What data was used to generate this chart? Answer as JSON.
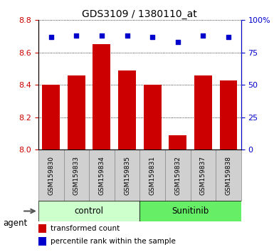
{
  "title": "GDS3109 / 1380110_at",
  "samples": [
    "GSM159830",
    "GSM159833",
    "GSM159834",
    "GSM159835",
    "GSM159831",
    "GSM159832",
    "GSM159837",
    "GSM159838"
  ],
  "bar_values": [
    8.4,
    8.46,
    8.65,
    8.49,
    8.4,
    8.09,
    8.46,
    8.43
  ],
  "percentile_values": [
    87,
    88,
    88,
    88,
    87,
    83,
    88,
    87
  ],
  "bar_color": "#cc0000",
  "dot_color": "#0000cc",
  "ylim_left": [
    8.0,
    8.8
  ],
  "ylim_right": [
    0,
    100
  ],
  "yticks_left": [
    8.0,
    8.2,
    8.4,
    8.6,
    8.8
  ],
  "yticks_right": [
    0,
    25,
    50,
    75,
    100
  ],
  "ytick_labels_right": [
    "0",
    "25",
    "50",
    "75",
    "100%"
  ],
  "groups": [
    {
      "label": "control",
      "indices": [
        0,
        1,
        2,
        3
      ],
      "color": "#ccffcc",
      "edge": "#000000"
    },
    {
      "label": "Sunitinib",
      "indices": [
        4,
        5,
        6,
        7
      ],
      "color": "#66ee66",
      "edge": "#000000"
    }
  ],
  "agent_label": "agent",
  "legend_bar_label": "transformed count",
  "legend_dot_label": "percentile rank within the sample",
  "bar_width": 0.7,
  "tick_color_left": "#cc0000",
  "tick_color_right": "#0000cc",
  "sample_box_color": "#d0d0d0",
  "sample_box_edge": "#888888"
}
